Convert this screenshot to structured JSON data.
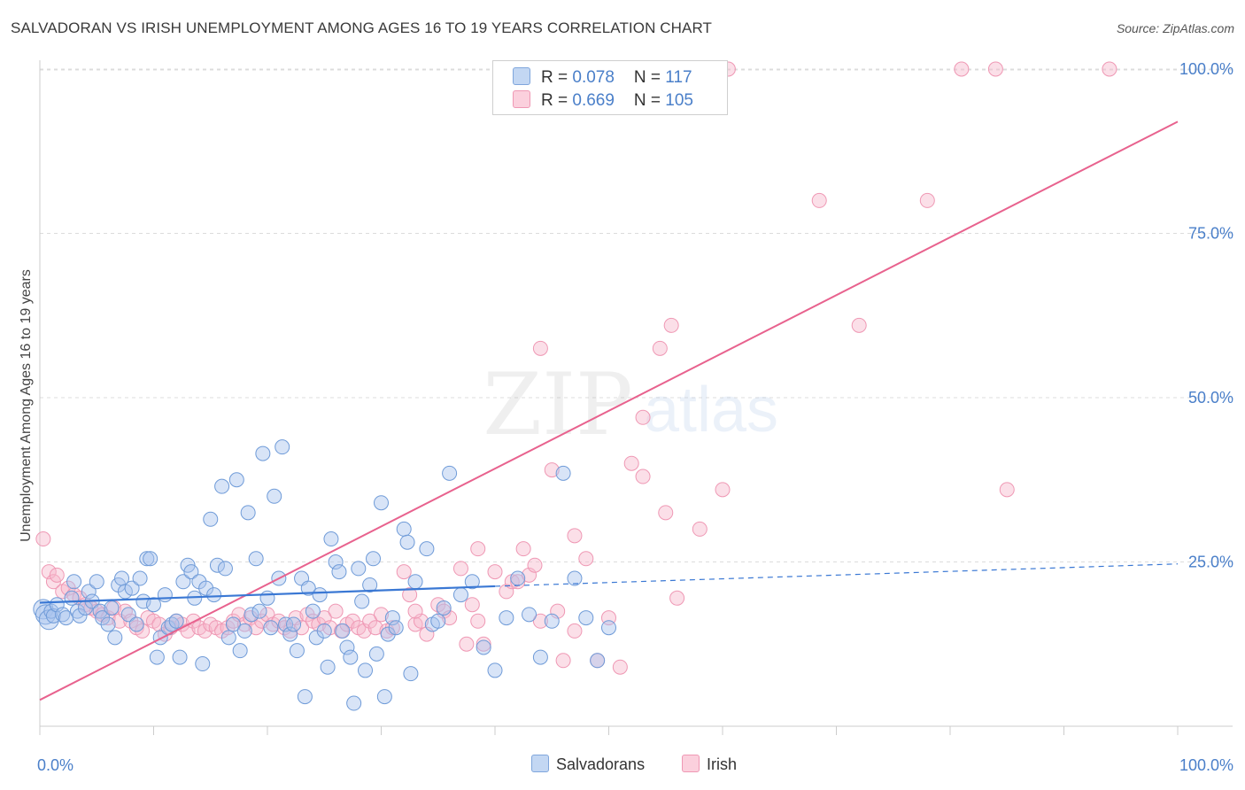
{
  "header": {
    "title": "SALVADORAN VS IRISH UNEMPLOYMENT AMONG AGES 16 TO 19 YEARS CORRELATION CHART",
    "source": "Source: ZipAtlas.com"
  },
  "watermark": {
    "zip": "ZIP",
    "atlas": "atlas"
  },
  "legend_top": {
    "rows": [
      {
        "r_label": "R = ",
        "r_value": "0.078",
        "n_label": "N = ",
        "n_value": "117",
        "color": "#a8c4ee"
      },
      {
        "r_label": "R = ",
        "r_value": "0.669",
        "n_label": "N = ",
        "n_value": "105",
        "color": "#f7b8cb"
      }
    ]
  },
  "legend_bottom": [
    {
      "label": "Salvadorans",
      "color": "#a8c4ee"
    },
    {
      "label": "Irish",
      "color": "#f7b8cb"
    }
  ],
  "colors": {
    "blue": "#4a7fc9",
    "blue_line": "#3a78d4",
    "pink": "#e8628e",
    "tick_label": "#4a7fc9"
  },
  "chart_data": {
    "type": "scatter",
    "title": "SALVADORAN VS IRISH UNEMPLOYMENT AMONG AGES 16 TO 19 YEARS CORRELATION CHART",
    "xlabel": "",
    "ylabel": "Unemployment Among Ages 16 to 19 years",
    "xlim": [
      0,
      100
    ],
    "ylim": [
      0,
      100
    ],
    "x_tick_labels": [
      "0.0%",
      "100.0%"
    ],
    "y_tick_labels": [
      "25.0%",
      "50.0%",
      "75.0%",
      "100.0%"
    ],
    "y_tick_values": [
      25,
      50,
      75,
      100
    ],
    "grid": true,
    "legend_position": "top-center",
    "series": [
      {
        "name": "Salvadorans",
        "color": "#a8c4ee",
        "R": 0.078,
        "N": 117,
        "trend": {
          "x": [
            0,
            40
          ],
          "y": [
            18.8,
            21.3
          ],
          "dashed_to": [
            100,
            24.7
          ]
        },
        "points": [
          [
            0.3,
            17.8
          ],
          [
            0.5,
            17.0
          ],
          [
            0.8,
            16.2
          ],
          [
            1.0,
            17.5
          ],
          [
            1.2,
            16.8
          ],
          [
            1.5,
            18.5
          ],
          [
            2.0,
            17.0
          ],
          [
            2.3,
            16.5
          ],
          [
            2.8,
            19.5
          ],
          [
            3.0,
            22.0
          ],
          [
            3.3,
            17.5
          ],
          [
            3.5,
            16.8
          ],
          [
            4.0,
            18.0
          ],
          [
            4.3,
            20.5
          ],
          [
            4.6,
            19.0
          ],
          [
            5.0,
            22.0
          ],
          [
            5.3,
            17.5
          ],
          [
            5.5,
            16.5
          ],
          [
            6.0,
            15.5
          ],
          [
            6.3,
            18.0
          ],
          [
            6.6,
            13.5
          ],
          [
            6.9,
            21.5
          ],
          [
            7.2,
            22.5
          ],
          [
            7.5,
            20.5
          ],
          [
            7.8,
            17.0
          ],
          [
            8.1,
            21.0
          ],
          [
            8.5,
            15.5
          ],
          [
            8.8,
            22.5
          ],
          [
            9.1,
            19.0
          ],
          [
            9.4,
            25.5
          ],
          [
            9.7,
            25.5
          ],
          [
            10.0,
            18.5
          ],
          [
            10.3,
            10.5
          ],
          [
            10.6,
            13.5
          ],
          [
            11.0,
            20.0
          ],
          [
            11.3,
            15.0
          ],
          [
            11.6,
            15.5
          ],
          [
            12.0,
            16.0
          ],
          [
            12.3,
            10.5
          ],
          [
            12.6,
            22.0
          ],
          [
            13.0,
            24.5
          ],
          [
            13.3,
            23.5
          ],
          [
            13.6,
            19.5
          ],
          [
            14.0,
            22.0
          ],
          [
            14.3,
            9.5
          ],
          [
            14.6,
            21.0
          ],
          [
            15.0,
            31.5
          ],
          [
            15.3,
            20.0
          ],
          [
            15.6,
            24.5
          ],
          [
            16.0,
            36.5
          ],
          [
            16.3,
            24.0
          ],
          [
            16.6,
            13.5
          ],
          [
            17.0,
            15.5
          ],
          [
            17.3,
            37.5
          ],
          [
            17.6,
            11.5
          ],
          [
            18.0,
            14.5
          ],
          [
            18.3,
            32.5
          ],
          [
            18.6,
            17.0
          ],
          [
            19.0,
            25.5
          ],
          [
            19.3,
            17.5
          ],
          [
            19.6,
            41.5
          ],
          [
            20.0,
            19.5
          ],
          [
            20.3,
            15.0
          ],
          [
            20.6,
            35.0
          ],
          [
            21.0,
            22.5
          ],
          [
            21.3,
            42.5
          ],
          [
            21.6,
            15.5
          ],
          [
            22.0,
            14.0
          ],
          [
            22.3,
            15.5
          ],
          [
            22.6,
            11.5
          ],
          [
            23.0,
            22.5
          ],
          [
            23.3,
            4.5
          ],
          [
            23.6,
            21.0
          ],
          [
            24.0,
            17.5
          ],
          [
            24.3,
            13.5
          ],
          [
            24.6,
            20.0
          ],
          [
            25.0,
            14.5
          ],
          [
            25.3,
            9.0
          ],
          [
            25.6,
            28.5
          ],
          [
            26.0,
            25.0
          ],
          [
            26.3,
            23.5
          ],
          [
            26.6,
            14.5
          ],
          [
            27.0,
            12.0
          ],
          [
            27.3,
            10.5
          ],
          [
            27.6,
            3.5
          ],
          [
            28.0,
            24.0
          ],
          [
            28.3,
            19.0
          ],
          [
            28.6,
            8.5
          ],
          [
            29.0,
            21.5
          ],
          [
            29.3,
            25.5
          ],
          [
            29.6,
            11.0
          ],
          [
            30.0,
            34.0
          ],
          [
            30.3,
            4.5
          ],
          [
            30.6,
            14.0
          ],
          [
            31.0,
            16.5
          ],
          [
            31.3,
            15.0
          ],
          [
            32.0,
            30.0
          ],
          [
            32.3,
            28.0
          ],
          [
            32.6,
            8.0
          ],
          [
            33.0,
            22.0
          ],
          [
            34.0,
            27.0
          ],
          [
            34.5,
            15.5
          ],
          [
            35.0,
            16.0
          ],
          [
            35.5,
            18.0
          ],
          [
            36.0,
            38.5
          ],
          [
            37.0,
            20.0
          ],
          [
            38.0,
            22.0
          ],
          [
            39.0,
            12.0
          ],
          [
            40.0,
            8.5
          ],
          [
            41.0,
            16.5
          ],
          [
            42.0,
            22.5
          ],
          [
            43.0,
            17.0
          ],
          [
            44.0,
            10.5
          ],
          [
            45.0,
            16.0
          ],
          [
            46.0,
            38.5
          ],
          [
            47.0,
            22.5
          ],
          [
            48.0,
            16.5
          ],
          [
            49.0,
            10.0
          ],
          [
            50.0,
            15.0
          ]
        ]
      },
      {
        "name": "Irish",
        "color": "#f7b8cb",
        "R": 0.669,
        "N": 105,
        "trend": {
          "x": [
            0,
            100
          ],
          "y": [
            4.0,
            92.0
          ]
        },
        "points": [
          [
            0.3,
            28.5
          ],
          [
            0.8,
            23.5
          ],
          [
            1.2,
            22.0
          ],
          [
            1.5,
            23.0
          ],
          [
            2.0,
            20.5
          ],
          [
            2.5,
            21.0
          ],
          [
            3.0,
            20.0
          ],
          [
            3.5,
            19.5
          ],
          [
            4.0,
            18.5
          ],
          [
            4.5,
            18.0
          ],
          [
            5.0,
            17.5
          ],
          [
            5.5,
            17.0
          ],
          [
            6.0,
            16.5
          ],
          [
            6.5,
            18.0
          ],
          [
            7.0,
            16.0
          ],
          [
            7.5,
            17.5
          ],
          [
            8.0,
            16.0
          ],
          [
            8.5,
            15.0
          ],
          [
            9.0,
            14.5
          ],
          [
            9.5,
            16.5
          ],
          [
            10.0,
            16.0
          ],
          [
            10.5,
            15.5
          ],
          [
            11.0,
            14.0
          ],
          [
            11.5,
            15.0
          ],
          [
            12.0,
            16.0
          ],
          [
            12.5,
            15.5
          ],
          [
            13.0,
            14.5
          ],
          [
            13.5,
            16.0
          ],
          [
            14.0,
            15.0
          ],
          [
            14.5,
            14.5
          ],
          [
            15.0,
            15.5
          ],
          [
            15.5,
            15.0
          ],
          [
            16.0,
            14.5
          ],
          [
            16.5,
            15.0
          ],
          [
            17.0,
            16.0
          ],
          [
            17.5,
            17.0
          ],
          [
            18.0,
            15.5
          ],
          [
            18.5,
            16.5
          ],
          [
            19.0,
            15.0
          ],
          [
            19.5,
            16.0
          ],
          [
            20.0,
            17.0
          ],
          [
            20.5,
            15.5
          ],
          [
            21.0,
            16.0
          ],
          [
            21.5,
            15.0
          ],
          [
            22.0,
            14.5
          ],
          [
            22.5,
            16.5
          ],
          [
            23.0,
            15.0
          ],
          [
            23.5,
            17.0
          ],
          [
            24.0,
            16.0
          ],
          [
            24.5,
            15.5
          ],
          [
            25.0,
            16.5
          ],
          [
            25.5,
            15.0
          ],
          [
            26.0,
            17.5
          ],
          [
            26.5,
            14.5
          ],
          [
            27.0,
            15.5
          ],
          [
            27.5,
            16.0
          ],
          [
            28.0,
            15.0
          ],
          [
            28.5,
            14.5
          ],
          [
            29.0,
            16.0
          ],
          [
            29.5,
            15.0
          ],
          [
            30.0,
            17.0
          ],
          [
            30.5,
            14.5
          ],
          [
            31.0,
            15.0
          ],
          [
            32.0,
            23.5
          ],
          [
            32.5,
            20.0
          ],
          [
            33.0,
            15.5
          ],
          [
            33.5,
            16.0
          ],
          [
            34.0,
            14.0
          ],
          [
            35.0,
            18.5
          ],
          [
            35.5,
            17.5
          ],
          [
            36.0,
            16.5
          ],
          [
            37.0,
            24.0
          ],
          [
            37.5,
            12.5
          ],
          [
            38.0,
            18.5
          ],
          [
            38.5,
            16.0
          ],
          [
            39.0,
            12.5
          ],
          [
            40.0,
            23.5
          ],
          [
            41.0,
            20.5
          ],
          [
            41.5,
            22.0
          ],
          [
            42.0,
            22.0
          ],
          [
            42.5,
            27.0
          ],
          [
            43.0,
            23.0
          ],
          [
            44.0,
            16.0
          ],
          [
            45.0,
            39.0
          ],
          [
            45.5,
            17.5
          ],
          [
            46.0,
            10.0
          ],
          [
            47.0,
            14.5
          ],
          [
            48.0,
            25.5
          ],
          [
            49.0,
            10.0
          ],
          [
            50.0,
            16.5
          ],
          [
            51.0,
            9.0
          ],
          [
            52.0,
            40.0
          ],
          [
            53.0,
            38.0
          ],
          [
            55.0,
            32.5
          ],
          [
            56.0,
            19.5
          ],
          [
            58.0,
            30.0
          ],
          [
            60.0,
            36.0
          ],
          [
            72.0,
            61.0
          ],
          [
            78.0,
            80.0
          ],
          [
            81.0,
            100.0
          ],
          [
            84.0,
            100.0
          ],
          [
            85.0,
            36.0
          ],
          [
            94.0,
            100.0
          ],
          [
            60.5,
            100.0
          ],
          [
            52.5,
            100.0
          ],
          [
            54.5,
            57.5
          ],
          [
            55.5,
            61.0
          ],
          [
            53.0,
            47.0
          ],
          [
            44.0,
            57.5
          ],
          [
            68.5,
            80.0
          ],
          [
            38.5,
            27.0
          ],
          [
            43.5,
            24.5
          ],
          [
            47.0,
            29.0
          ],
          [
            33.0,
            17.5
          ]
        ]
      }
    ]
  }
}
